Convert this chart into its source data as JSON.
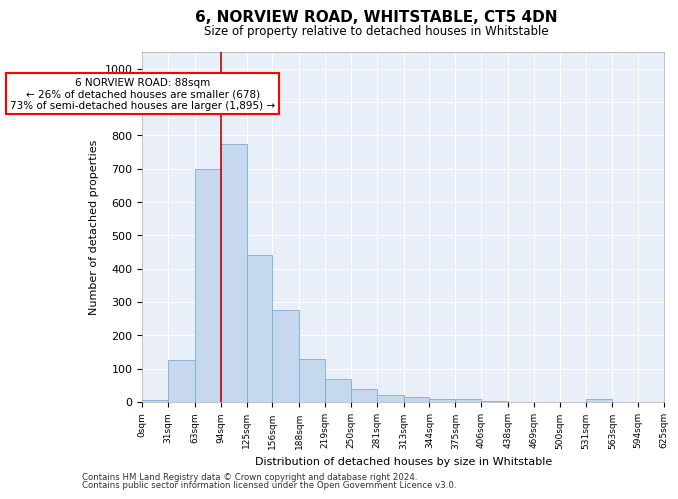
{
  "title": "6, NORVIEW ROAD, WHITSTABLE, CT5 4DN",
  "subtitle": "Size of property relative to detached houses in Whitstable",
  "xlabel": "Distribution of detached houses by size in Whitstable",
  "ylabel": "Number of detached properties",
  "bar_color": "#c5d8ee",
  "bar_edge_color": "#7aadd4",
  "background_color": "#e8eff8",
  "grid_color": "#ffffff",
  "annotation_text": "6 NORVIEW ROAD: 88sqm\n← 26% of detached houses are smaller (678)\n73% of semi-detached houses are larger (1,895) →",
  "vline_x": 94,
  "vline_color": "#cc0000",
  "bin_edges": [
    0,
    31,
    63,
    94,
    125,
    156,
    188,
    219,
    250,
    281,
    313,
    344,
    375,
    406,
    438,
    469,
    500,
    531,
    563,
    594,
    625
  ],
  "bar_heights": [
    5,
    125,
    700,
    775,
    440,
    275,
    130,
    70,
    40,
    22,
    15,
    10,
    10,
    2,
    0,
    0,
    0,
    10,
    0,
    0
  ],
  "ylim": [
    0,
    1050
  ],
  "yticks": [
    0,
    100,
    200,
    300,
    400,
    500,
    600,
    700,
    800,
    900,
    1000
  ],
  "footnote1": "Contains HM Land Registry data © Crown copyright and database right 2024.",
  "footnote2": "Contains public sector information licensed under the Open Government Licence v3.0."
}
